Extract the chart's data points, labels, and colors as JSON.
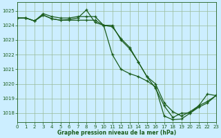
{
  "background_color": "#cceeff",
  "grid_color": "#99bb99",
  "line_color": "#1a5c1a",
  "xlabel": "Graphe pression niveau de la mer (hPa)",
  "ylim": [
    1017.4,
    1025.6
  ],
  "xlim": [
    0,
    23
  ],
  "yticks": [
    1018,
    1019,
    1020,
    1021,
    1022,
    1023,
    1024,
    1025
  ],
  "xticks": [
    0,
    1,
    2,
    3,
    4,
    5,
    6,
    7,
    8,
    9,
    10,
    11,
    12,
    13,
    14,
    15,
    16,
    17,
    18,
    19,
    20,
    21,
    22,
    23
  ],
  "series": [
    [
      1024.5,
      1024.5,
      1024.3,
      1024.7,
      1024.45,
      1024.35,
      1024.4,
      1024.5,
      1025.05,
      1024.2,
      1024.0,
      1023.9,
      1023.1,
      1022.5,
      1021.5,
      1020.5,
      1019.7,
      1018.5,
      1017.7,
      1018.0,
      1018.0,
      1018.5,
      1019.3,
      1019.2
    ],
    [
      1024.5,
      1024.5,
      1024.3,
      1024.7,
      1024.45,
      1024.35,
      1024.35,
      1024.35,
      1024.35,
      1024.35,
      1024.0,
      1024.0,
      1023.0,
      1022.4,
      1021.5,
      1020.5,
      1020.0,
      1018.7,
      1018.1,
      1017.8,
      1018.1,
      1018.5,
      1018.8,
      1019.2
    ],
    [
      1024.5,
      1024.5,
      1024.3,
      1024.8,
      1024.6,
      1024.5,
      1024.5,
      1024.6,
      1024.6,
      1024.6,
      1024.0,
      1022.0,
      1021.0,
      1020.7,
      1020.5,
      1020.2,
      1019.8,
      1017.8,
      1017.55,
      1017.6,
      1018.0,
      1018.4,
      1018.7,
      1019.2
    ]
  ],
  "figsize": [
    3.2,
    2.0
  ],
  "dpi": 100
}
